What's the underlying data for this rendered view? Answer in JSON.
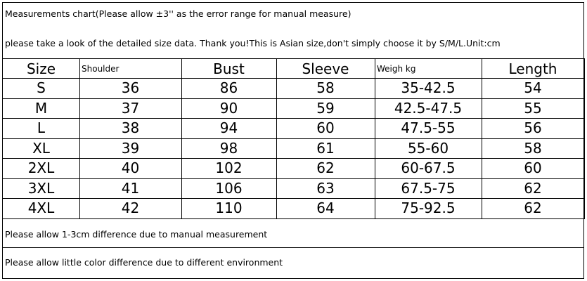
{
  "header": {
    "title": "Measurements chart(Please allow ±3'' as the error range for manual measure)",
    "subtitle": "please take a look of the detailed size data. Thank you!This is Asian size,don't simply choose it by S/M/L.Unit:cm"
  },
  "table": {
    "columns": [
      "Size",
      "Shoulder",
      "Bust",
      "Sleeve",
      "Weigh kg",
      "Length"
    ],
    "rows": [
      [
        "S",
        "36",
        "86",
        "58",
        "35-42.5",
        "54"
      ],
      [
        "M",
        "37",
        "90",
        "59",
        "42.5-47.5",
        "55"
      ],
      [
        "L",
        "38",
        "94",
        "60",
        "47.5-55",
        "56"
      ],
      [
        "XL",
        "39",
        "98",
        "61",
        "55-60",
        "58"
      ],
      [
        "2XL",
        "40",
        "102",
        "62",
        "60-67.5",
        "60"
      ],
      [
        "3XL",
        "41",
        "106",
        "63",
        "67.5-75",
        "62"
      ],
      [
        "4XL",
        "42",
        "110",
        "64",
        "75-92.5",
        "62"
      ]
    ]
  },
  "footer": [
    "Please allow 1-3cm difference due to manual measurement",
    "Please allow little color difference due to different environment"
  ]
}
